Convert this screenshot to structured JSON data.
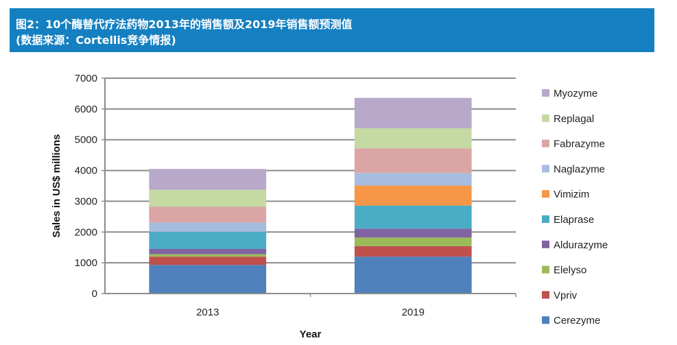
{
  "header": {
    "title_line1": "图2：10个酶替代疗法药物2013年的销售额及2019年销售额预测值",
    "title_line2": "(数据来源：Cortellis竞争情报)",
    "background": "#1580c1"
  },
  "chart_data": {
    "type": "bar",
    "stacked": true,
    "categories": [
      "2013",
      "2019"
    ],
    "xlabel": "Year",
    "ylabel": "Sales in US$ millions",
    "ylim": [
      0,
      7000
    ],
    "yticks": [
      0,
      1000,
      2000,
      3000,
      4000,
      5000,
      6000,
      7000
    ],
    "grid": true,
    "legend_position": "right",
    "series": [
      {
        "name": "Cerezyme",
        "color": "#4f81bd",
        "values": [
          930,
          1200
        ]
      },
      {
        "name": "Vpriv",
        "color": "#c0504d",
        "values": [
          270,
          340
        ]
      },
      {
        "name": "Elelyso",
        "color": "#9bbb59",
        "values": [
          80,
          280
        ]
      },
      {
        "name": "Aldurazyme",
        "color": "#8064a2",
        "values": [
          170,
          290
        ]
      },
      {
        "name": "Elaprase",
        "color": "#4bacc6",
        "values": [
          560,
          750
        ]
      },
      {
        "name": "Vimizim",
        "color": "#f79646",
        "values": [
          0,
          650
        ]
      },
      {
        "name": "Naglazyme",
        "color": "#a6bddf",
        "values": [
          300,
          410
        ]
      },
      {
        "name": "Fabrazyme",
        "color": "#dba5a4",
        "values": [
          510,
          800
        ]
      },
      {
        "name": "Replagal",
        "color": "#c5d9a3",
        "values": [
          550,
          650
        ]
      },
      {
        "name": "Myozyme",
        "color": "#b8a9ca",
        "values": [
          680,
          990
        ]
      }
    ]
  }
}
